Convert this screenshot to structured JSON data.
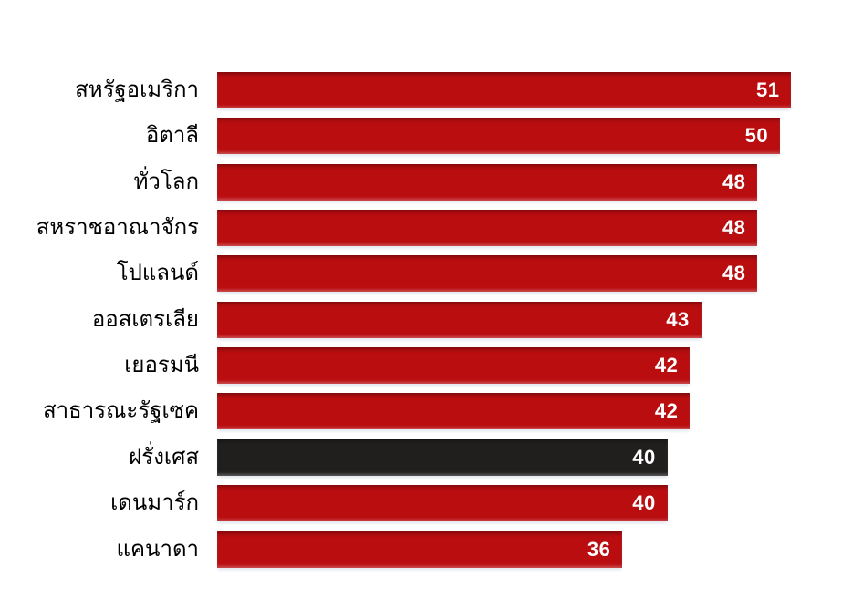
{
  "chart_data": {
    "type": "bar",
    "orientation": "horizontal",
    "title": "",
    "categories": [
      "สหรัฐอเมริกา",
      "อิตาลี",
      "ทั่วโลก",
      "สหราชอาณาจักร",
      "โปแลนด์",
      "ออสเตรเลีย",
      "เยอรมนี",
      "สาธารณะรัฐเซค",
      "ฝรั่งเศส",
      "เดนมาร์ก",
      "แคนาดา"
    ],
    "values": [
      51,
      50,
      48,
      48,
      48,
      43,
      42,
      42,
      40,
      40,
      36
    ],
    "highlighted_category": "ฝรั่งเศส",
    "highlighted_index": 8,
    "bar_color": "#b90d10",
    "highlight_color": "#211e1e",
    "value_label_color": "#ffffff",
    "category_label_color": "#000000",
    "background_color": "#ffffff",
    "xlim": [
      0,
      55.5
    ],
    "data_labels": true,
    "grid": false,
    "legend": false
  }
}
